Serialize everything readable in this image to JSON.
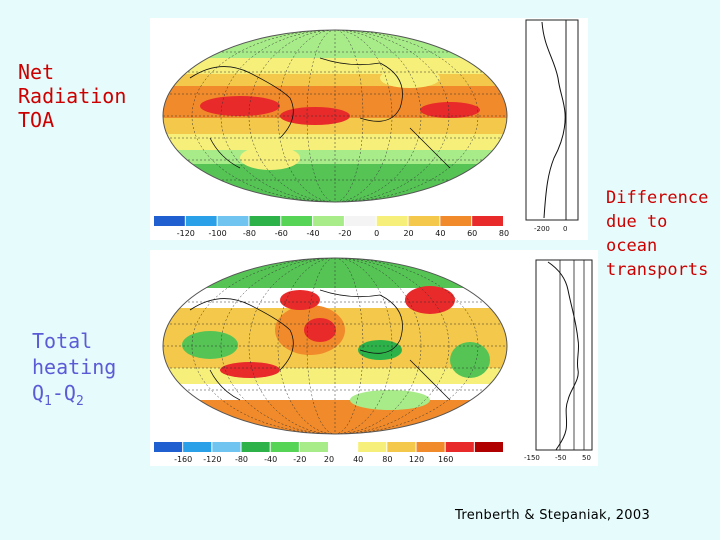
{
  "labels": {
    "net_radiation": [
      "Net",
      "Radiation",
      "TOA"
    ],
    "difference": [
      "Difference",
      "due to",
      "ocean",
      "transports"
    ],
    "total_heating": [
      "Total",
      "heating"
    ],
    "q_term": {
      "q": "Q",
      "one": "1",
      "dash": "-",
      "q2": "Q",
      "two": "2"
    },
    "credit": "Trenberth & Stepaniak, 2003"
  },
  "top_colorbar": {
    "ticks": [
      "-120",
      "-100",
      "-80",
      "-60",
      "-40",
      "-20",
      "0",
      "20",
      "40",
      "60",
      "80"
    ],
    "colors": [
      "#1f5fd0",
      "#2aa0e8",
      "#70c4f0",
      "#2db24a",
      "#55d455",
      "#a8ec8a",
      "#f4f4f4",
      "#f6f07a",
      "#f4c84a",
      "#f08a2a",
      "#e82a2a"
    ]
  },
  "bottom_colorbar": {
    "ticks": [
      "-160",
      "-120",
      "-80",
      "-40",
      "-20",
      "20",
      "40",
      "80",
      "120",
      "160"
    ],
    "colors": [
      "#1f5fd0",
      "#2aa0e8",
      "#70c4f0",
      "#2db24a",
      "#55d455",
      "#a8ec8a",
      "#ffffff",
      "#f6f07a",
      "#f4c84a",
      "#f08a2a",
      "#e82a2a",
      "#b00000"
    ]
  },
  "top_profile": {
    "ticks": [
      "-200",
      "0"
    ]
  },
  "bottom_profile": {
    "ticks": [
      "-150",
      "-50",
      "50"
    ]
  }
}
